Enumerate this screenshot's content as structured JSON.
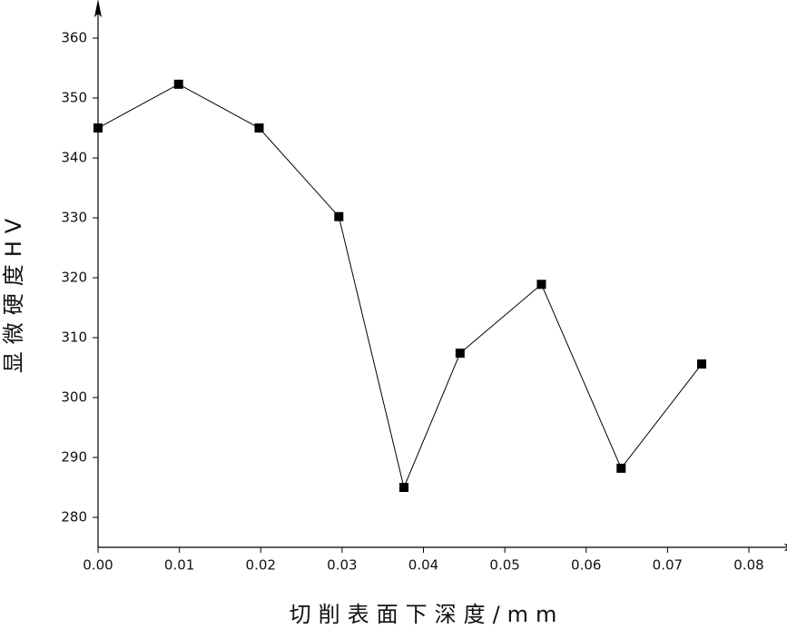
{
  "chart_data": {
    "type": "line",
    "x_label": "切削表面下深度/mm",
    "y_label": "显微硬度HV",
    "x": [
      0.0,
      0.0099,
      0.0198,
      0.0296,
      0.0376,
      0.0445,
      0.0545,
      0.0643,
      0.0742
    ],
    "series": [
      {
        "color": "#000000",
        "values": [
          345,
          352.3,
          345,
          330.2,
          285,
          307.4,
          318.9,
          288.2,
          305.6
        ]
      }
    ],
    "xlim": [
      0,
      0.085
    ],
    "ylim": [
      275,
      365
    ],
    "xticks": [
      {
        "value": 0,
        "label": "0.00"
      },
      {
        "value": 0.01,
        "label": "0.01"
      },
      {
        "value": 0.02,
        "label": "0.02"
      },
      {
        "value": 0.03,
        "label": "0.03"
      },
      {
        "value": 0.04,
        "label": "0.04"
      },
      {
        "value": 0.05,
        "label": "0.05"
      },
      {
        "value": 0.06,
        "label": "0.06"
      },
      {
        "value": 0.07,
        "label": "0.07"
      },
      {
        "value": 0.08,
        "label": "0.08"
      }
    ],
    "yticks": [
      280,
      290,
      300,
      310,
      320,
      330,
      340,
      350,
      360
    ]
  }
}
